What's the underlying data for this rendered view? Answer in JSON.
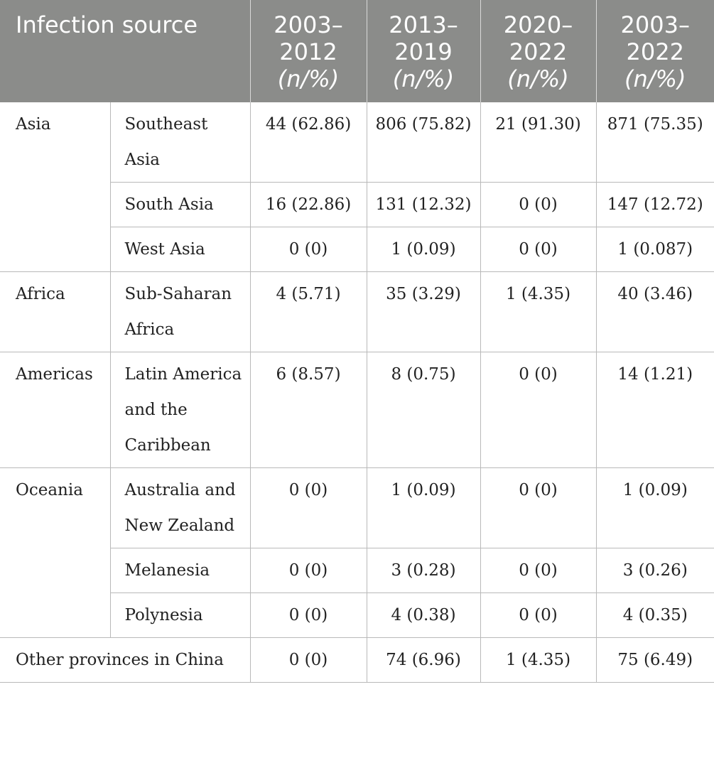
{
  "header": {
    "source_label": "Infection source",
    "periods": [
      {
        "years": "2003–2012",
        "unit": "(n/%)"
      },
      {
        "years": "2013–2019",
        "unit": "(n/%)"
      },
      {
        "years": "2020–2022",
        "unit": "(n/%)"
      },
      {
        "years": "2003–2022",
        "unit": "(n/%)"
      }
    ]
  },
  "rows": {
    "asia": {
      "region": "Asia",
      "southeast": {
        "sub": "Southeast Asia",
        "v": [
          "44 (62.86)",
          "806 (75.82)",
          "21 (91.30)",
          "871 (75.35)"
        ]
      },
      "south": {
        "sub": "South Asia",
        "v": [
          "16 (22.86)",
          "131 (12.32)",
          "0 (0)",
          "147 (12.72)"
        ]
      },
      "west": {
        "sub": "West Asia",
        "v": [
          "0 (0)",
          "1 (0.09)",
          "0 (0)",
          "1 (0.087)"
        ]
      }
    },
    "africa": {
      "region": "Africa",
      "subsaharan": {
        "sub": "Sub-Saharan Africa",
        "v": [
          "4 (5.71)",
          "35 (3.29)",
          "1 (4.35)",
          "40 (3.46)"
        ]
      }
    },
    "americas": {
      "region": "Americas",
      "latin": {
        "sub": "Latin America and the Caribbean",
        "v": [
          "6 (8.57)",
          "8 (0.75)",
          "0 (0)",
          "14 (1.21)"
        ]
      }
    },
    "oceania": {
      "region": "Oceania",
      "aus": {
        "sub": "Australia and New Zealand",
        "v": [
          "0 (0)",
          "1 (0.09)",
          "0 (0)",
          "1 (0.09)"
        ]
      },
      "melanesia": {
        "sub": "Melanesia",
        "v": [
          "0 (0)",
          "3 (0.28)",
          "0 (0)",
          "3 (0.26)"
        ]
      },
      "polynesia": {
        "sub": "Polynesia",
        "v": [
          "0 (0)",
          "4 (0.38)",
          "0 (0)",
          "4 (0.35)"
        ]
      }
    },
    "other": {
      "label": "Other provinces in China",
      "v": [
        "0 (0)",
        "74 (6.96)",
        "1 (4.35)",
        "75 (6.49)"
      ]
    }
  }
}
